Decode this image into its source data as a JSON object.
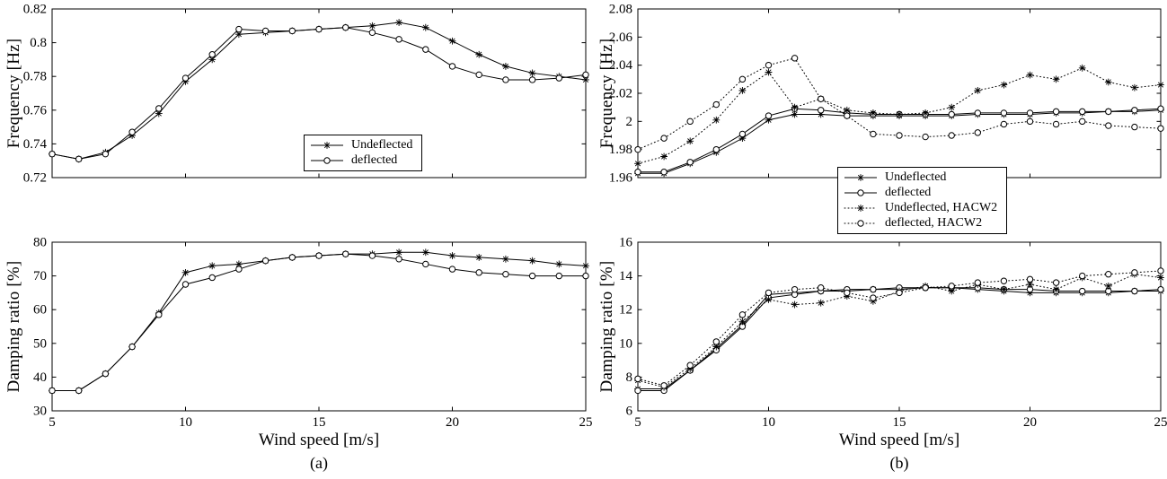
{
  "figure": {
    "captions": {
      "a": "(a)",
      "b": "(b)"
    }
  },
  "chart_data": [
    {
      "type": "line",
      "panel": "a-top",
      "title": "",
      "ylabel": "Frequency [Hz]",
      "xlabel": "",
      "xlim": [
        5,
        25
      ],
      "ylim": [
        0.72,
        0.82
      ],
      "xticks": [
        5,
        10,
        15,
        20,
        25
      ],
      "xtick_labels": null,
      "yticks": [
        0.72,
        0.74,
        0.76,
        0.78,
        0.8,
        0.82
      ],
      "ytick_labels": [
        "0.72",
        "0.74",
        "0.76",
        "0.78",
        "0.8",
        "0.82"
      ],
      "grid": false,
      "legend_position": "inside-bottom-center",
      "x": [
        5,
        6,
        7,
        8,
        9,
        10,
        11,
        12,
        13,
        14,
        15,
        16,
        17,
        18,
        19,
        20,
        21,
        22,
        23,
        24,
        25
      ],
      "series": [
        {
          "name": "Undeflected",
          "marker": "star",
          "line": "solid",
          "values": [
            0.734,
            0.731,
            0.735,
            0.745,
            0.758,
            0.777,
            0.79,
            0.805,
            0.806,
            0.807,
            0.808,
            0.809,
            0.81,
            0.812,
            0.809,
            0.801,
            0.793,
            0.786,
            0.782,
            0.78,
            0.778
          ]
        },
        {
          "name": "deflected",
          "marker": "circle",
          "line": "solid",
          "values": [
            0.734,
            0.731,
            0.734,
            0.747,
            0.761,
            0.779,
            0.793,
            0.808,
            0.807,
            0.807,
            0.808,
            0.809,
            0.806,
            0.802,
            0.796,
            0.786,
            0.781,
            0.778,
            0.778,
            0.779,
            0.781
          ]
        }
      ]
    },
    {
      "type": "line",
      "panel": "a-bottom",
      "title": "",
      "ylabel": "Damping ratio [%]",
      "xlabel": "Wind speed [m/s]",
      "xlim": [
        5,
        25
      ],
      "ylim": [
        30,
        80
      ],
      "xticks": [
        5,
        10,
        15,
        20,
        25
      ],
      "xtick_labels": [
        "5",
        "10",
        "15",
        "20",
        "25"
      ],
      "yticks": [
        30,
        40,
        50,
        60,
        70,
        80
      ],
      "ytick_labels": [
        "30",
        "40",
        "50",
        "60",
        "70",
        "80"
      ],
      "grid": false,
      "x": [
        5,
        6,
        7,
        8,
        9,
        10,
        11,
        12,
        13,
        14,
        15,
        16,
        17,
        18,
        19,
        20,
        21,
        22,
        23,
        24,
        25
      ],
      "series": [
        {
          "name": "Undeflected",
          "marker": "star",
          "line": "solid",
          "values": [
            36,
            36,
            41,
            49,
            59,
            71,
            73,
            73.5,
            74.5,
            75.5,
            76,
            76.5,
            76.5,
            77,
            77,
            76,
            75.5,
            75,
            74.5,
            73.5,
            73
          ]
        },
        {
          "name": "deflected",
          "marker": "circle",
          "line": "solid",
          "values": [
            36,
            36,
            41,
            49,
            58.5,
            67.5,
            69.5,
            72,
            74.5,
            75.5,
            76,
            76.5,
            76,
            75,
            73.5,
            72,
            71,
            70.5,
            70,
            70,
            70
          ]
        }
      ]
    },
    {
      "type": "line",
      "panel": "b-top",
      "title": "",
      "ylabel": "Frequency [Hz]",
      "xlabel": "",
      "xlim": [
        5,
        25
      ],
      "ylim": [
        1.96,
        2.08
      ],
      "xticks": [
        5,
        10,
        15,
        20,
        25
      ],
      "xtick_labels": null,
      "yticks": [
        1.96,
        1.98,
        2,
        2.02,
        2.04,
        2.06,
        2.08
      ],
      "ytick_labels": [
        "1.96",
        "1.98",
        "2",
        "2.02",
        "2.04",
        "2.06",
        "2.08"
      ],
      "grid": false,
      "legend_position": "below-bottom-center",
      "x": [
        5,
        6,
        7,
        8,
        9,
        10,
        11,
        12,
        13,
        14,
        15,
        16,
        17,
        18,
        19,
        20,
        21,
        22,
        23,
        24,
        25
      ],
      "series": [
        {
          "name": "Undeflected",
          "marker": "star",
          "line": "solid",
          "values": [
            1.963,
            1.963,
            1.97,
            1.978,
            1.988,
            2.001,
            2.005,
            2.005,
            2.004,
            2.004,
            2.004,
            2.004,
            2.004,
            2.005,
            2.005,
            2.005,
            2.006,
            2.006,
            2.007,
            2.007,
            2.008
          ]
        },
        {
          "name": "deflected",
          "marker": "circle",
          "line": "solid",
          "values": [
            1.964,
            1.964,
            1.971,
            1.98,
            1.991,
            2.004,
            2.009,
            2.008,
            2.006,
            2.005,
            2.005,
            2.005,
            2.005,
            2.006,
            2.006,
            2.006,
            2.007,
            2.007,
            2.007,
            2.008,
            2.009
          ]
        },
        {
          "name": "Undeflected, HACW2",
          "marker": "star",
          "line": "dotted",
          "values": [
            1.97,
            1.975,
            1.986,
            2.001,
            2.022,
            2.035,
            2.01,
            2.016,
            2.008,
            2.006,
            2.005,
            2.006,
            2.01,
            2.022,
            2.026,
            2.033,
            2.03,
            2.038,
            2.028,
            2.024,
            2.026
          ]
        },
        {
          "name": "deflected, HACW2",
          "marker": "circle",
          "line": "dotted",
          "values": [
            1.98,
            1.988,
            2.0,
            2.012,
            2.03,
            2.04,
            2.045,
            2.016,
            2.004,
            1.991,
            1.99,
            1.989,
            1.99,
            1.992,
            1.998,
            2.0,
            1.998,
            2.0,
            1.997,
            1.996,
            1.995
          ]
        }
      ]
    },
    {
      "type": "line",
      "panel": "b-bottom",
      "title": "",
      "ylabel": "Damping ratio [%]",
      "xlabel": "Wind speed [m/s]",
      "xlim": [
        5,
        25
      ],
      "ylim": [
        6,
        16
      ],
      "xticks": [
        5,
        10,
        15,
        20,
        25
      ],
      "xtick_labels": [
        "5",
        "10",
        "15",
        "20",
        "25"
      ],
      "yticks": [
        6,
        8,
        10,
        12,
        14,
        16
      ],
      "ytick_labels": [
        "6",
        "8",
        "10",
        "12",
        "14",
        "16"
      ],
      "grid": false,
      "x": [
        5,
        6,
        7,
        8,
        9,
        10,
        11,
        12,
        13,
        14,
        15,
        16,
        17,
        18,
        19,
        20,
        21,
        22,
        23,
        24,
        25
      ],
      "series": [
        {
          "name": "Undeflected",
          "marker": "star",
          "line": "solid",
          "values": [
            7.3,
            7.3,
            8.4,
            9.7,
            11.1,
            12.9,
            13.0,
            13.1,
            13.1,
            13.2,
            13.2,
            13.3,
            13.3,
            13.2,
            13.1,
            13.0,
            13.0,
            13.0,
            13.0,
            13.1,
            13.1
          ]
        },
        {
          "name": "deflected",
          "marker": "circle",
          "line": "solid",
          "values": [
            7.2,
            7.2,
            8.4,
            9.6,
            11.0,
            12.7,
            12.9,
            13.1,
            13.2,
            13.2,
            13.3,
            13.3,
            13.3,
            13.3,
            13.2,
            13.2,
            13.1,
            13.1,
            13.1,
            13.1,
            13.2
          ]
        },
        {
          "name": "Undeflected, HACW2",
          "marker": "star",
          "line": "dotted",
          "values": [
            7.8,
            7.4,
            8.5,
            9.8,
            11.3,
            12.6,
            12.3,
            12.4,
            12.8,
            12.5,
            13.1,
            13.4,
            13.1,
            13.5,
            13.2,
            13.5,
            13.2,
            13.9,
            13.4,
            14.1,
            13.9
          ]
        },
        {
          "name": "deflected, HACW2",
          "marker": "circle",
          "line": "dotted",
          "values": [
            7.9,
            7.5,
            8.7,
            10.1,
            11.7,
            13.0,
            13.2,
            13.3,
            13.0,
            12.7,
            13.0,
            13.3,
            13.4,
            13.6,
            13.7,
            13.8,
            13.6,
            14.0,
            14.1,
            14.2,
            14.3
          ]
        }
      ]
    }
  ]
}
